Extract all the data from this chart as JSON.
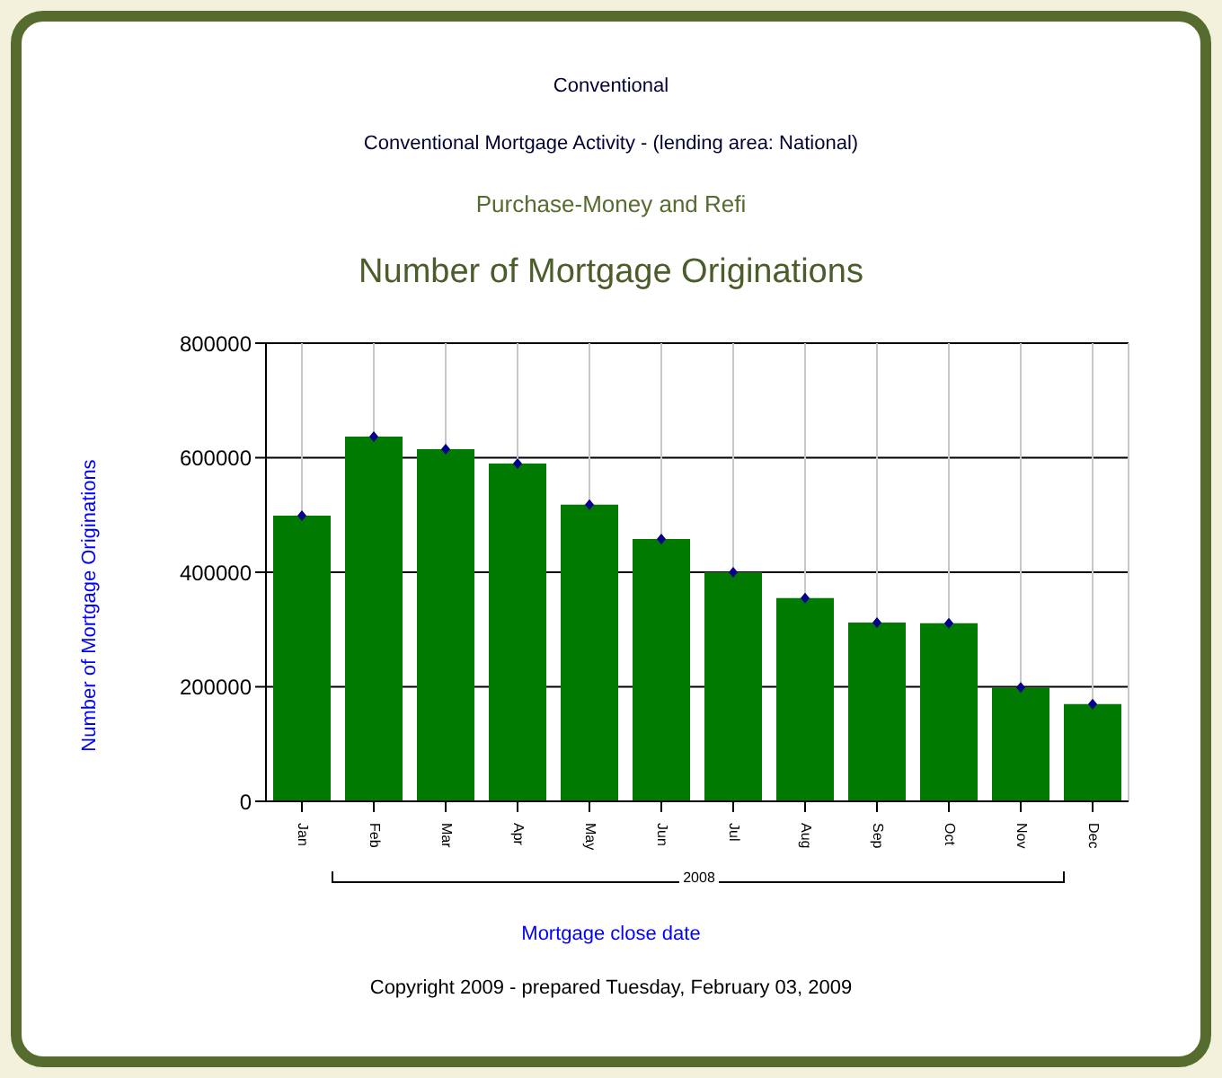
{
  "chart_data": {
    "type": "bar",
    "title": "Number of Mortgage Originations",
    "subtitle": "Purchase-Money and Refi",
    "xlabel": "Mortgage close date",
    "ylabel": "Number of Mortgage Originations",
    "annotations": [
      "Conventional",
      "Conventional Mortgage Activity - (lending area: National)",
      "2008",
      "Copyright 2009 - prepared Tuesday, February 03, 2009"
    ],
    "categories": [
      "Jan",
      "Feb",
      "Mar",
      "Apr",
      "May",
      "Jun",
      "Jul",
      "Aug",
      "Sep",
      "Oct",
      "Nov",
      "Dec"
    ],
    "series": [
      {
        "color": "#007a00",
        "values": [
          499000,
          637000,
          615000,
          590000,
          518000,
          458000,
          400000,
          355000,
          312000,
          311000,
          199000,
          170000
        ]
      },
      {
        "type": "scatter",
        "color": "#00008b",
        "marker": "diamond",
        "values": [
          499000,
          637000,
          615000,
          590000,
          518000,
          458000,
          400000,
          355000,
          312000,
          311000,
          199000,
          170000
        ]
      }
    ],
    "ylim": [
      0,
      800000
    ],
    "yticks": [
      0,
      200000,
      400000,
      600000,
      800000
    ],
    "grid": true
  }
}
